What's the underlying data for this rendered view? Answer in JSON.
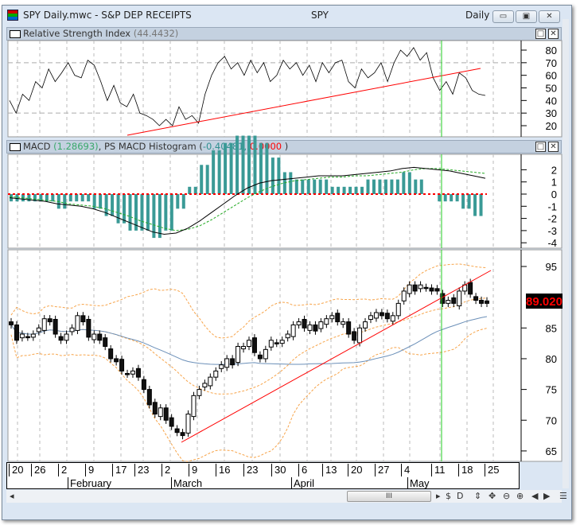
{
  "window": {
    "title": "SPY Daily.mwc - S&P DEP RECEIPTS",
    "symbol": "SPY",
    "period": "Daily",
    "buttons": [
      "minimize",
      "restore",
      "close"
    ]
  },
  "rsi_panel": {
    "label": "Relative Strength Index",
    "value": "(44.4432)",
    "axis_ticks": [
      80,
      70,
      60,
      50,
      40,
      30,
      20
    ]
  },
  "macd_panel": {
    "label": "MACD",
    "macd_value": "(1.28693)",
    "sep": ", ",
    "hist_label": "PS MACD Histogram (",
    "hist_value": "-0.40481,",
    "hist_value2": " 0.0000",
    "close": " )",
    "axis_ticks": [
      2,
      1,
      0,
      -1,
      -2,
      -3,
      -4
    ],
    "colors": {
      "macd_value": "#3aa86b",
      "hist_value": "#2f8f8f",
      "hist_value2": "#ff0000"
    }
  },
  "price_panel": {
    "axis_ticks": [
      95,
      90,
      85,
      80,
      75,
      70,
      65
    ],
    "last_price": "89.020",
    "last_price_color": "#ff0000"
  },
  "date_axis": {
    "days": [
      "20",
      "26",
      "2",
      "9",
      "17",
      "23",
      "2",
      "9",
      "16",
      "23",
      "30",
      "6",
      "13",
      "20",
      "27",
      "4",
      "11",
      "18",
      "25"
    ],
    "months": [
      "February",
      "March",
      "April",
      "May"
    ]
  },
  "toolbar": {
    "items": [
      "$",
      "D",
      "⇕",
      "✥",
      "⊖",
      "⊕",
      "◀",
      "▶",
      "☰"
    ],
    "thumb": "III"
  },
  "chart_data": {
    "type": "candlestick",
    "closes": [
      85.5,
      83,
      84,
      83.5,
      84,
      85,
      86.5,
      86,
      84,
      83,
      84,
      85,
      87,
      86,
      83.5,
      84,
      83,
      82,
      80,
      79.5,
      78,
      77.5,
      78,
      77,
      75,
      72.5,
      71,
      72,
      70,
      69,
      68,
      67.5,
      71,
      74,
      75,
      76,
      77,
      78,
      79,
      80,
      79,
      82,
      82,
      83,
      81,
      80,
      81.5,
      83,
      82.5,
      83,
      84,
      85.5,
      86,
      85,
      85.5,
      84.5,
      86,
      86.5,
      87,
      86,
      86,
      84,
      83,
      85,
      86,
      87,
      87.5,
      87,
      86.5,
      87,
      89,
      91,
      92,
      91,
      92,
      91.5,
      91,
      91,
      89,
      89.5,
      89,
      91,
      92,
      90.5,
      89.5,
      89,
      89
    ],
    "rsi": [
      40,
      30,
      45,
      40,
      55,
      50,
      65,
      55,
      62,
      70,
      60,
      58,
      72,
      68,
      55,
      40,
      52,
      38,
      35,
      45,
      30,
      28,
      25,
      20,
      25,
      20,
      35,
      25,
      28,
      22,
      45,
      60,
      70,
      75,
      65,
      70,
      60,
      72,
      62,
      70,
      55,
      60,
      72,
      65,
      70,
      60,
      68,
      55,
      70,
      62,
      70,
      72,
      55,
      50,
      65,
      58,
      62,
      70,
      55,
      70,
      80,
      75,
      82,
      72,
      78,
      58,
      48,
      55,
      45,
      62,
      58,
      48,
      45,
      44
    ],
    "macd": [
      -0.3,
      -0.4,
      -0.5,
      -0.6,
      -0.8,
      -0.9,
      -1.0,
      -1.2,
      -1.5,
      -1.9,
      -2.3,
      -2.7,
      -3.1,
      -3.3,
      -3.2,
      -2.8,
      -2.2,
      -1.5,
      -0.8,
      -0.1,
      0.5,
      0.9,
      1.1,
      1.2,
      1.3,
      1.4,
      1.5,
      1.5,
      1.5,
      1.6,
      1.7,
      1.8,
      1.9,
      2.1,
      2.2,
      2.1,
      2.0,
      1.9,
      1.7,
      1.5,
      1.3
    ],
    "signal": [
      -0.2,
      -0.3,
      -0.4,
      -0.5,
      -0.6,
      -0.8,
      -0.9,
      -1.0,
      -1.2,
      -1.5,
      -1.8,
      -2.2,
      -2.5,
      -2.8,
      -3.0,
      -2.9,
      -2.6,
      -2.1,
      -1.5,
      -0.9,
      -0.3,
      0.2,
      0.6,
      0.9,
      1.1,
      1.2,
      1.3,
      1.4,
      1.4,
      1.5,
      1.5,
      1.6,
      1.7,
      1.8,
      2.0,
      2.1,
      2.1,
      2.0,
      1.9,
      1.8,
      1.7
    ],
    "rsi_ylim": [
      20,
      80
    ],
    "macd_ylim": [
      -4,
      2
    ],
    "price_ylim": [
      65,
      95
    ]
  }
}
